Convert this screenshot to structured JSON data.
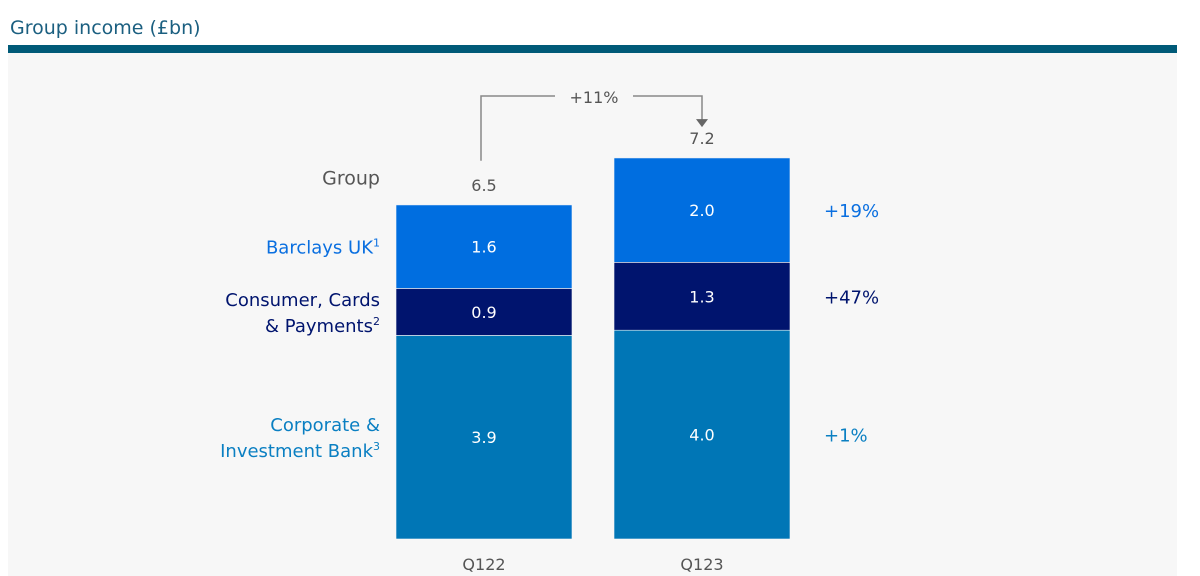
{
  "title": "Group income (£bn)",
  "colors": {
    "title": "#1b5f80",
    "rule": "#005a78",
    "panel": "#f7f7f7",
    "grey": "#555555",
    "arrow": "#888888"
  },
  "chart_data": {
    "type": "bar",
    "stacked": true,
    "title": "Group income (£bn)",
    "categories": [
      "Q122",
      "Q123"
    ],
    "totals": [
      6.5,
      7.2
    ],
    "total_label": "Group",
    "total_change": "+11%",
    "series": [
      {
        "name": "Corporate & Investment Bank",
        "label_lines": [
          "Corporate &",
          "Investment Bank"
        ],
        "sup": "3",
        "values": [
          3.9,
          4.0
        ],
        "change": "+1%",
        "color": "#0076b6"
      },
      {
        "name": "Consumer, Cards & Payments",
        "label_lines": [
          "Consumer, Cards",
          "& Payments"
        ],
        "sup": "2",
        "values": [
          0.9,
          1.3
        ],
        "change": "+47%",
        "color": "#00146e"
      },
      {
        "name": "Barclays UK",
        "label_lines": [
          "Barclays UK"
        ],
        "sup": "1",
        "values": [
          1.6,
          2.0
        ],
        "change": "+19%",
        "color": "#006ee0"
      }
    ],
    "label_colors": [
      "#0a7fc2",
      "#00146e",
      "#0a6fe0"
    ],
    "ylim": [
      0,
      7.2
    ]
  }
}
